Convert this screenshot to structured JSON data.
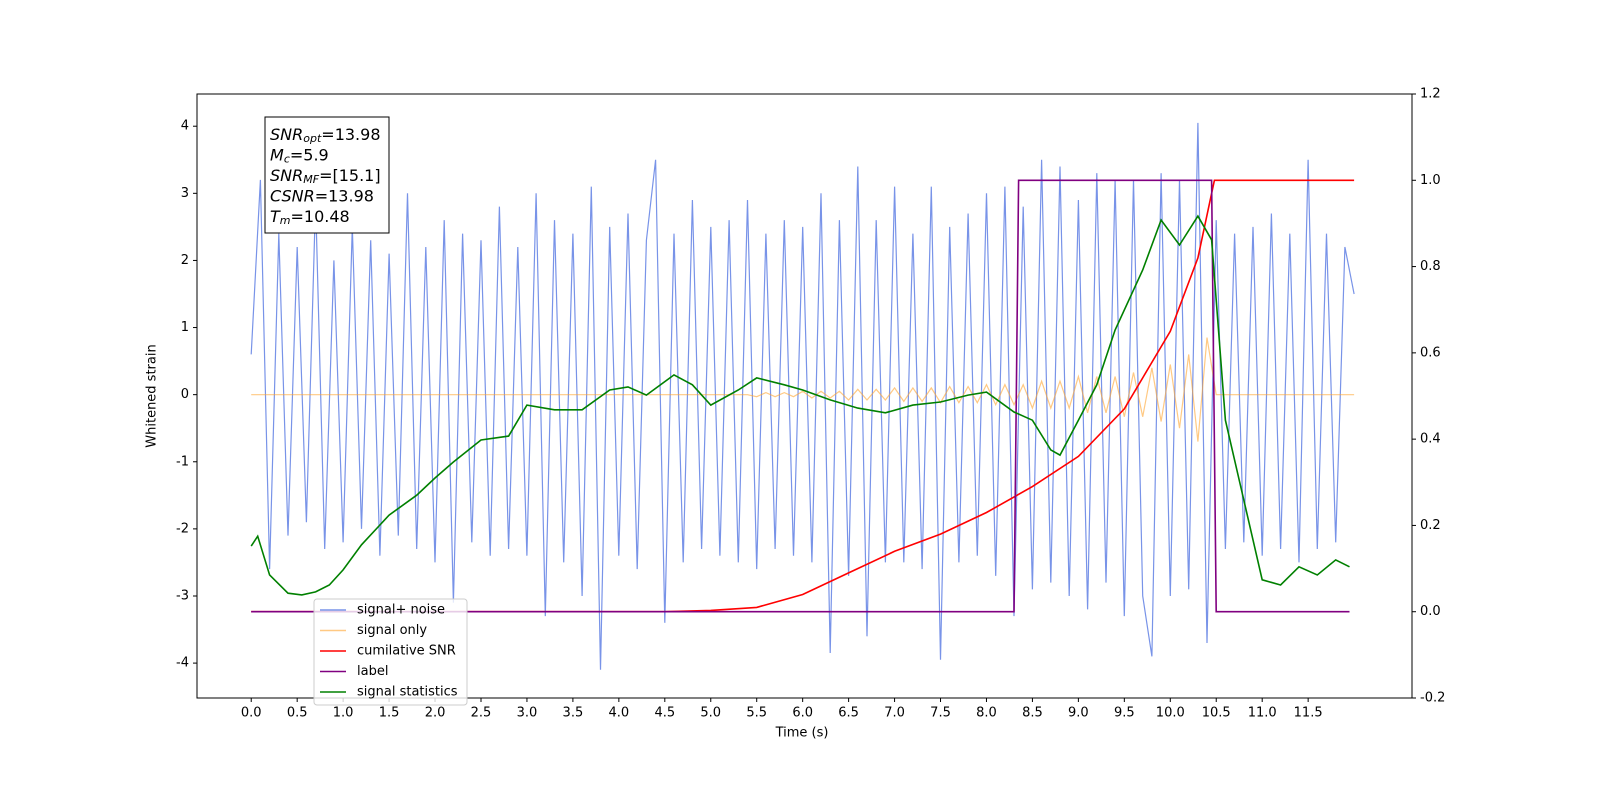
{
  "chart_data": {
    "type": "line",
    "xlabel": "Time (s)",
    "ylabel": "Whitened strain",
    "xlim": [
      -0.59,
      12.63
    ],
    "ylim": [
      -4.52,
      4.48
    ],
    "y2lim": [
      -0.2,
      1.2
    ],
    "xticks": [
      {
        "value": 0,
        "label": "0.0"
      },
      0.5,
      {
        "value": 1,
        "label": "1.0"
      },
      1.5,
      {
        "value": 2,
        "label": "2.0"
      },
      2.5,
      {
        "value": 3,
        "label": "3.0"
      },
      3.5,
      {
        "value": 4,
        "label": "4.0"
      },
      4.5,
      {
        "value": 5,
        "label": "5.0"
      },
      5.5,
      {
        "value": 6,
        "label": "6.0"
      },
      6.5,
      {
        "value": 7,
        "label": "7.0"
      },
      7.5,
      {
        "value": 8,
        "label": "8.0"
      },
      8.5,
      {
        "value": 9,
        "label": "9.0"
      },
      9.5,
      {
        "value": 10,
        "label": "10.0"
      },
      10.5,
      {
        "value": 11,
        "label": "11.0"
      },
      11.5
    ],
    "yticks": [
      -4,
      -3,
      -2,
      -1,
      0,
      1,
      2,
      3,
      4
    ],
    "y2ticks": [
      -0.2,
      {
        "value": 0,
        "label": "0.0"
      },
      0.2,
      0.4,
      0.6,
      0.8,
      {
        "value": 1,
        "label": "1.0"
      },
      1.2
    ],
    "legend": "lower left",
    "annotation": [
      {
        "main": "SNR",
        "sub": "opt",
        "text": "=13.98"
      },
      {
        "main": "M",
        "sub": "c",
        "text": "=5.9"
      },
      {
        "main": "SNR",
        "sub": "MF",
        "text": "=[15.1]"
      },
      {
        "main": "CSNR",
        "sub": null,
        "text": "=13.98"
      },
      {
        "main": "T",
        "sub": "m",
        "text": "=10.48"
      }
    ],
    "x": [
      0,
      0.1,
      0.2,
      0.3,
      0.4,
      0.5,
      0.6,
      0.7,
      0.8,
      0.9,
      1,
      1.1,
      1.2,
      1.3,
      1.4,
      1.5,
      1.6,
      1.7,
      1.8,
      1.9,
      2,
      2.1,
      2.2,
      2.3,
      2.4,
      2.5,
      2.6,
      2.7,
      2.8,
      2.9,
      3,
      3.1,
      3.2,
      3.3,
      3.4,
      3.5,
      3.6,
      3.7,
      3.8,
      3.9,
      4,
      4.1,
      4.2,
      4.3,
      4.4,
      4.5,
      4.6,
      4.7,
      4.8,
      4.9,
      5,
      5.1,
      5.2,
      5.3,
      5.4,
      5.5,
      5.6,
      5.7,
      5.8,
      5.9,
      6,
      6.1,
      6.2,
      6.3,
      6.4,
      6.5,
      6.6,
      6.7,
      6.8,
      6.9,
      7,
      7.1,
      7.2,
      7.3,
      7.4,
      7.5,
      7.6,
      7.7,
      7.8,
      7.9,
      8,
      8.1,
      8.2,
      8.3,
      8.4,
      8.5,
      8.6,
      8.7,
      8.8,
      8.9,
      9,
      9.1,
      9.2,
      9.3,
      9.4,
      9.5,
      9.6,
      9.7,
      9.8,
      9.9,
      10,
      10.1,
      10.2,
      10.3,
      10.4,
      10.5,
      10.6,
      10.7,
      10.8,
      10.9,
      11,
      11.1,
      11.2,
      11.3,
      11.4,
      11.5,
      11.6,
      11.7,
      11.8,
      11.9,
      12
    ],
    "series": [
      {
        "name": "signal+ noise",
        "color": "#7893e8",
        "values": [
          0.6,
          3.2,
          -2.6,
          2.4,
          -2.1,
          2.2,
          -1.9,
          2.9,
          -2.3,
          2.0,
          -2.2,
          2.5,
          -2.0,
          2.3,
          -2.4,
          2.1,
          -2.1,
          3.0,
          -2.3,
          2.2,
          -2.5,
          2.6,
          -3.1,
          2.4,
          -2.2,
          2.3,
          -2.4,
          2.8,
          -2.3,
          2.2,
          -2.4,
          3.0,
          -3.3,
          2.6,
          -2.5,
          2.4,
          -3.0,
          3.1,
          -4.1,
          2.5,
          -2.4,
          2.7,
          -2.6,
          2.3,
          3.5,
          -3.4,
          2.4,
          -2.5,
          2.9,
          -2.3,
          2.5,
          -2.4,
          2.6,
          -2.5,
          2.9,
          -2.6,
          2.4,
          -2.3,
          2.6,
          -2.4,
          2.5,
          -2.5,
          3.0,
          -3.85,
          2.6,
          -2.7,
          3.4,
          -3.6,
          2.6,
          -2.5,
          3.1,
          -2.5,
          2.4,
          -2.6,
          3.1,
          -3.95,
          2.5,
          -2.5,
          2.7,
          -2.4,
          3.0,
          -2.7,
          3.1,
          -3.3,
          2.8,
          -2.9,
          3.5,
          -2.8,
          3.4,
          -3.0,
          2.9,
          -3.2,
          3.3,
          -2.8,
          3.2,
          -3.3,
          3.2,
          -3.0,
          -3.9,
          3.3,
          -3.0,
          3.2,
          -2.9,
          4.05,
          -3.7,
          2.6,
          -2.3,
          2.4,
          -2.2,
          2.5,
          -2.4,
          2.7,
          -2.3,
          2.4,
          -2.5,
          3.5,
          -2.3,
          2.4,
          -2.2,
          2.2,
          1.5
        ]
      },
      {
        "name": "signal only",
        "color": "#ffa530",
        "values": [
          0,
          0,
          0,
          0,
          0,
          0,
          0,
          0,
          0,
          0,
          0,
          0,
          0,
          0,
          0,
          0,
          0,
          0,
          0,
          0,
          0,
          0,
          0,
          0,
          0,
          0,
          0,
          0,
          0,
          0,
          0,
          0,
          0,
          0,
          0,
          0,
          0,
          0,
          0,
          0,
          0,
          0,
          0,
          0,
          0,
          0,
          0,
          0,
          0,
          0,
          0,
          0,
          0,
          0,
          0,
          -0.03,
          0.03,
          -0.03,
          0.03,
          -0.03,
          0.05,
          -0.05,
          0.05,
          -0.05,
          0.05,
          -0.08,
          0.08,
          -0.08,
          0.08,
          -0.08,
          0.1,
          -0.1,
          0.1,
          -0.1,
          0.1,
          -0.12,
          0.12,
          -0.12,
          0.12,
          -0.12,
          0.15,
          -0.15,
          0.15,
          -0.15,
          0.15,
          -0.2,
          0.2,
          -0.2,
          0.2,
          -0.2,
          0.27,
          -0.27,
          0.27,
          -0.27,
          0.27,
          -0.33,
          0.33,
          -0.33,
          0.4,
          -0.4,
          0.45,
          -0.5,
          0.6,
          -0.7,
          0.85,
          0,
          0,
          0,
          0,
          0,
          0,
          0,
          0,
          0,
          0,
          0,
          0,
          0,
          0,
          0,
          0
        ]
      },
      {
        "name": "cumilative SNR",
        "color": "#ff0000",
        "axis": "y2",
        "x": [
          0,
          4.5,
          5,
          5.5,
          6,
          6.5,
          7,
          7.5,
          8,
          8.5,
          9,
          9.5,
          10,
          10.3,
          10.48,
          12
        ],
        "values": [
          0,
          0,
          0.003,
          0.01,
          0.04,
          0.09,
          0.14,
          0.18,
          0.23,
          0.29,
          0.36,
          0.47,
          0.65,
          0.82,
          1.0,
          1.0
        ]
      },
      {
        "name": "label",
        "color": "#800080",
        "axis": "y2",
        "x": [
          0,
          8.3,
          8.35,
          10.45,
          10.5,
          11.95
        ],
        "values": [
          0,
          0,
          1,
          1,
          0,
          0
        ]
      },
      {
        "name": "signal statistics",
        "color": "#008000",
        "axis": "y2",
        "x": [
          0,
          0.07,
          0.2,
          0.4,
          0.55,
          0.7,
          0.85,
          1,
          1.2,
          1.5,
          1.8,
          2,
          2.2,
          2.5,
          2.8,
          3,
          3.3,
          3.6,
          3.9,
          4.1,
          4.3,
          4.6,
          4.8,
          5,
          5.3,
          5.5,
          5.8,
          6,
          6.3,
          6.6,
          6.9,
          7.2,
          7.5,
          7.8,
          8,
          8.3,
          8.5,
          8.7,
          8.8,
          9,
          9.2,
          9.4,
          9.7,
          9.9,
          10.1,
          10.3,
          10.45,
          10.6,
          10.8,
          11,
          11.2,
          11.4,
          11.6,
          11.8,
          11.95
        ],
        "values": [
          0.152,
          0.175,
          0.085,
          0.043,
          0.039,
          0.046,
          0.062,
          0.097,
          0.155,
          0.224,
          0.27,
          0.31,
          0.347,
          0.398,
          0.407,
          0.479,
          0.468,
          0.468,
          0.514,
          0.521,
          0.502,
          0.549,
          0.526,
          0.479,
          0.514,
          0.542,
          0.526,
          0.514,
          0.491,
          0.472,
          0.461,
          0.479,
          0.486,
          0.502,
          0.509,
          0.463,
          0.444,
          0.375,
          0.363,
          0.444,
          0.526,
          0.653,
          0.792,
          0.908,
          0.85,
          0.917,
          0.862,
          0.444,
          0.259,
          0.074,
          0.062,
          0.104,
          0.085,
          0.12,
          0.104
        ]
      }
    ]
  }
}
